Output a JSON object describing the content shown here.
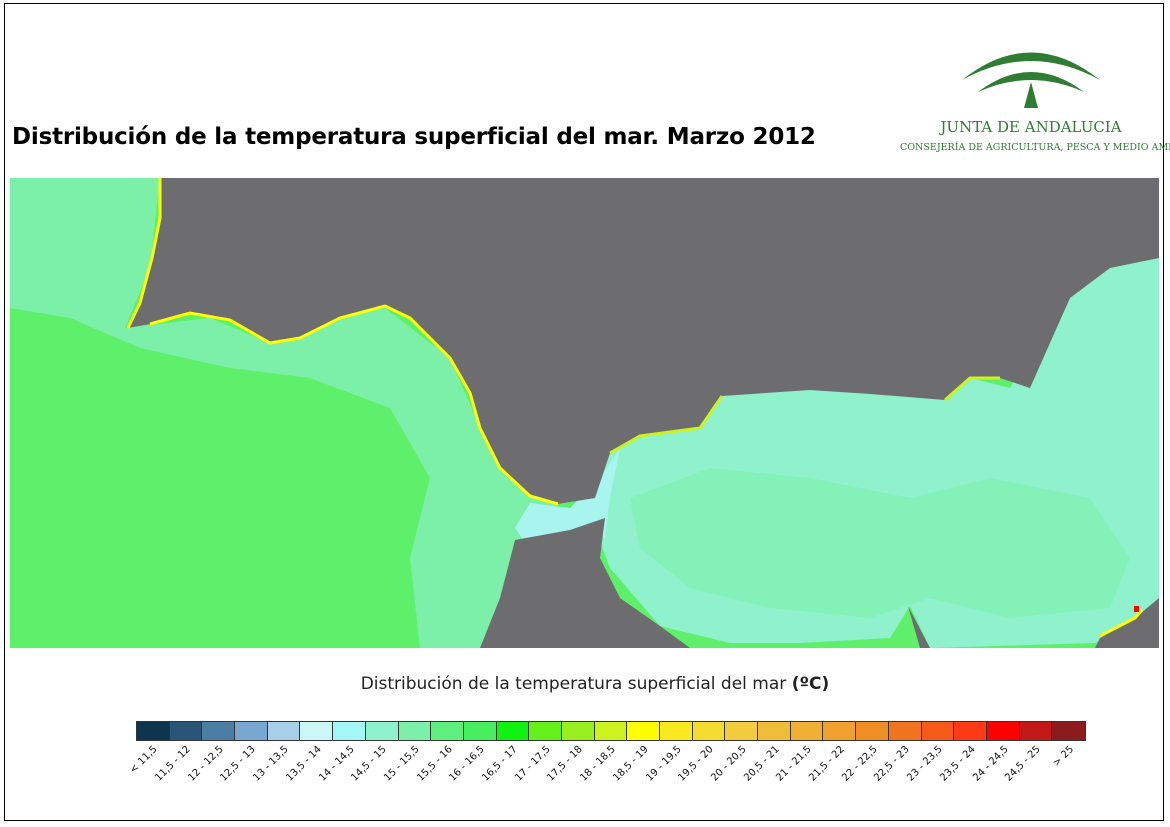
{
  "title": "Distribución de la temperatura superficial del mar. Marzo 2012",
  "logo": {
    "name": "JUNTA DE ANDALUCIA",
    "subtitle": "CONSEJERÍA DE AGRICULTURA, PESCA Y MEDIO AMBIENTE",
    "color": "#2e7d32"
  },
  "map": {
    "land_color": "#6d6d70",
    "sea_colors": {
      "base_atlantic": "#5ef06a",
      "coastal": "#8ff0c8",
      "strait": "#a8f5f0",
      "warm_edge": "#ffff00"
    }
  },
  "legend": {
    "title": "Distribución de la temperatura superficial del mar",
    "unit": "(ºC)",
    "classes": [
      {
        "label": "< 11,5",
        "color": "#0d3550"
      },
      {
        "label": "11,5 - 12",
        "color": "#2a5576"
      },
      {
        "label": "12 - 12,5",
        "color": "#4c7ea3"
      },
      {
        "label": "12,5 - 13",
        "color": "#78a7d0"
      },
      {
        "label": "13 - 13,5",
        "color": "#a8cfe8"
      },
      {
        "label": "13,5 - 14",
        "color": "#ccf7f7"
      },
      {
        "label": "14 - 14,5",
        "color": "#a3f7f7"
      },
      {
        "label": "14,5 - 15",
        "color": "#8ff2cd"
      },
      {
        "label": "15 - 15,5",
        "color": "#7cf0a8"
      },
      {
        "label": "15,5 - 16",
        "color": "#5fef7f"
      },
      {
        "label": "16 - 16,5",
        "color": "#47ef5f"
      },
      {
        "label": "16,5 - 17",
        "color": "#10f210"
      },
      {
        "label": "17 - 17,5",
        "color": "#66f01a"
      },
      {
        "label": "17,5 - 18",
        "color": "#99f021"
      },
      {
        "label": "18 - 18,5",
        "color": "#ccf21f"
      },
      {
        "label": "18,5 - 19",
        "color": "#ffff00"
      },
      {
        "label": "19 - 19,5",
        "color": "#f8ea1e"
      },
      {
        "label": "19,5 - 20",
        "color": "#f4dc31"
      },
      {
        "label": "20 - 20,5",
        "color": "#f2cc3d"
      },
      {
        "label": "20,5 - 21",
        "color": "#f0bd3b"
      },
      {
        "label": "21 - 21,5",
        "color": "#efb034"
      },
      {
        "label": "21,5 - 22",
        "color": "#efa02d"
      },
      {
        "label": "22 - 22,5",
        "color": "#f08e26"
      },
      {
        "label": "22,5 - 23",
        "color": "#f0741e"
      },
      {
        "label": "23 - 23,5",
        "color": "#f55a1a"
      },
      {
        "label": "23,5 - 24",
        "color": "#ff3a14"
      },
      {
        "label": "24 - 24,5",
        "color": "#ff0000"
      },
      {
        "label": "24,5 - 25",
        "color": "#c21818"
      },
      {
        "label": "> 25",
        "color": "#8c1b1b"
      }
    ]
  }
}
